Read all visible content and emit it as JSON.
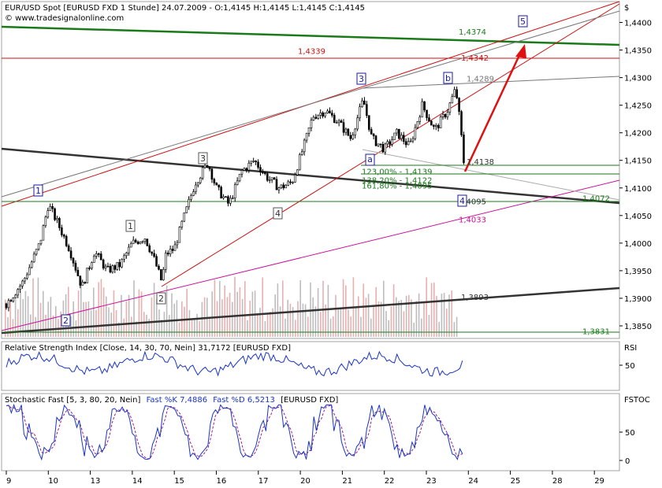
{
  "chart_data": [
    {
      "type": "candlestick",
      "title": "EUR/USD Spot [EURUSD FXD  1 Stunde] 24.07.2009 - O:1,4145 H:1,4145 L:1,4145 C:1,4145",
      "watermark": "© www.tradesignalonline.com",
      "currency_symbol": "$",
      "ylim": [
        1.383,
        1.4435
      ],
      "yticks": [
        "1,3850",
        "1,3900",
        "1,3950",
        "1,4000",
        "1,4050",
        "1,4100",
        "1,4150",
        "1,4200",
        "1,4250",
        "1,4300",
        "1,4350",
        "1,4400"
      ],
      "x_ticks": [
        "9",
        "10",
        "13",
        "14",
        "15",
        "16",
        "17",
        "20",
        "21",
        "22",
        "23",
        "24",
        "25",
        "28",
        "29"
      ],
      "price_path": [
        [
          0,
          1.389
        ],
        [
          0.4,
          1.393
        ],
        [
          0.8,
          1.4
        ],
        [
          1.0,
          1.407
        ],
        [
          1.2,
          1.404
        ],
        [
          1.5,
          1.399
        ],
        [
          1.8,
          1.392
        ],
        [
          2.1,
          1.3985
        ],
        [
          2.4,
          1.395
        ],
        [
          2.7,
          1.396
        ],
        [
          3.0,
          1.4
        ],
        [
          3.3,
          1.401
        ],
        [
          3.5,
          1.3975
        ],
        [
          3.7,
          1.393
        ],
        [
          3.8,
          1.398
        ],
        [
          4.0,
          1.399
        ],
        [
          4.2,
          1.404
        ],
        [
          4.5,
          1.411
        ],
        [
          4.8,
          1.4145
        ],
        [
          5.0,
          1.41
        ],
        [
          5.3,
          1.407
        ],
        [
          5.6,
          1.413
        ],
        [
          5.9,
          1.415
        ],
        [
          6.2,
          1.412
        ],
        [
          6.5,
          1.41
        ],
        [
          6.8,
          1.411
        ],
        [
          7.1,
          1.418
        ],
        [
          7.3,
          1.423
        ],
        [
          7.6,
          1.424
        ],
        [
          7.9,
          1.422
        ],
        [
          8.2,
          1.419
        ],
        [
          8.5,
          1.426
        ],
        [
          8.7,
          1.419
        ],
        [
          9.0,
          1.417
        ],
        [
          9.3,
          1.42
        ],
        [
          9.6,
          1.4175
        ],
        [
          9.9,
          1.425
        ],
        [
          10.2,
          1.4205
        ],
        [
          10.5,
          1.424
        ],
        [
          10.7,
          1.428
        ],
        [
          10.8,
          1.422
        ],
        [
          10.9,
          1.414
        ]
      ],
      "volume_note": "histogram in lower area of price pane",
      "price_labels": [
        {
          "text": "1,4374",
          "value": 1.4374,
          "color": "#1a7a1a"
        },
        {
          "text": "1,4339",
          "value": 1.4339,
          "color": "#cc1111"
        },
        {
          "text": "1,4342",
          "value": 1.4342,
          "color": "#cc1111"
        },
        {
          "text": "1,4289",
          "value": 1.4289,
          "color": "#777777"
        },
        {
          "text": "1,4138",
          "value": 1.4138,
          "color": "#333333"
        },
        {
          "text": "123,00% - 1,4139",
          "value": 1.4139,
          "color": "#1a7a1a"
        },
        {
          "text": "138,20% - 1,4122",
          "value": 1.4122,
          "color": "#1a7a1a"
        },
        {
          "text": "161,80% - 1,4095",
          "value": 1.4095,
          "color": "#1a7a1a"
        },
        {
          "text": "1,4095",
          "value": 1.4095,
          "color": "#333333"
        },
        {
          "text": "1,4072",
          "value": 1.4072,
          "color": "#1a7a1a"
        },
        {
          "text": "1,4033",
          "value": 1.4033,
          "color": "#cc1199"
        },
        {
          "text": "1,3893",
          "value": 1.3893,
          "color": "#333333"
        },
        {
          "text": "1,3831",
          "value": 1.3831,
          "color": "#1a7a1a"
        }
      ],
      "wave_labels": [
        {
          "text": "1",
          "style": "blue"
        },
        {
          "text": "2",
          "style": "blue"
        },
        {
          "text": "3",
          "style": "blue"
        },
        {
          "text": "4",
          "style": "blue"
        },
        {
          "text": "5",
          "style": "blue"
        },
        {
          "text": "a",
          "style": "blue"
        },
        {
          "text": "b",
          "style": "blue"
        },
        {
          "text": "1",
          "style": "gray"
        },
        {
          "text": "2",
          "style": "gray"
        },
        {
          "text": "3",
          "style": "gray"
        },
        {
          "text": "4",
          "style": "gray"
        }
      ],
      "lines": [
        {
          "name": "green-resistance",
          "color": "#1a7a1a"
        },
        {
          "name": "red-horizontal-1,4339",
          "color": "#cc1111"
        },
        {
          "name": "dark-trend-descending",
          "color": "#333333"
        },
        {
          "name": "dark-support-ascending",
          "color": "#333333"
        },
        {
          "name": "magenta-trend",
          "color": "#cc1199"
        },
        {
          "name": "red-channel-upper",
          "color": "#cc1111"
        },
        {
          "name": "red-channel-lower",
          "color": "#cc1111"
        },
        {
          "name": "gray-channel",
          "color": "#777777"
        },
        {
          "name": "red-arrow-target",
          "color": "#e01010"
        }
      ]
    },
    {
      "type": "line",
      "title": "Relative Strength Index [Close, 14, 30, 70, Nein] 31,7172 [EURUSD FXD]",
      "label": "RSI",
      "ylim": [
        0,
        100
      ],
      "yticks": [
        "50"
      ],
      "color": "#1a35c8"
    },
    {
      "type": "line",
      "title_prefix": "Stochastic Fast [5, 3, 80, 20, Nein]",
      "title_k": "Fast %K 7,4886",
      "title_d": "Fast %D 6,5213",
      "title_suffix": "[EURUSD FXD]",
      "label": "FSTOC",
      "ylim": [
        0,
        100
      ],
      "yticks": [
        "50",
        "0"
      ],
      "series": [
        {
          "name": "Fast %K",
          "color": "#1a35c8"
        },
        {
          "name": "Fast %D",
          "color": "#9b1a8a"
        }
      ]
    }
  ]
}
